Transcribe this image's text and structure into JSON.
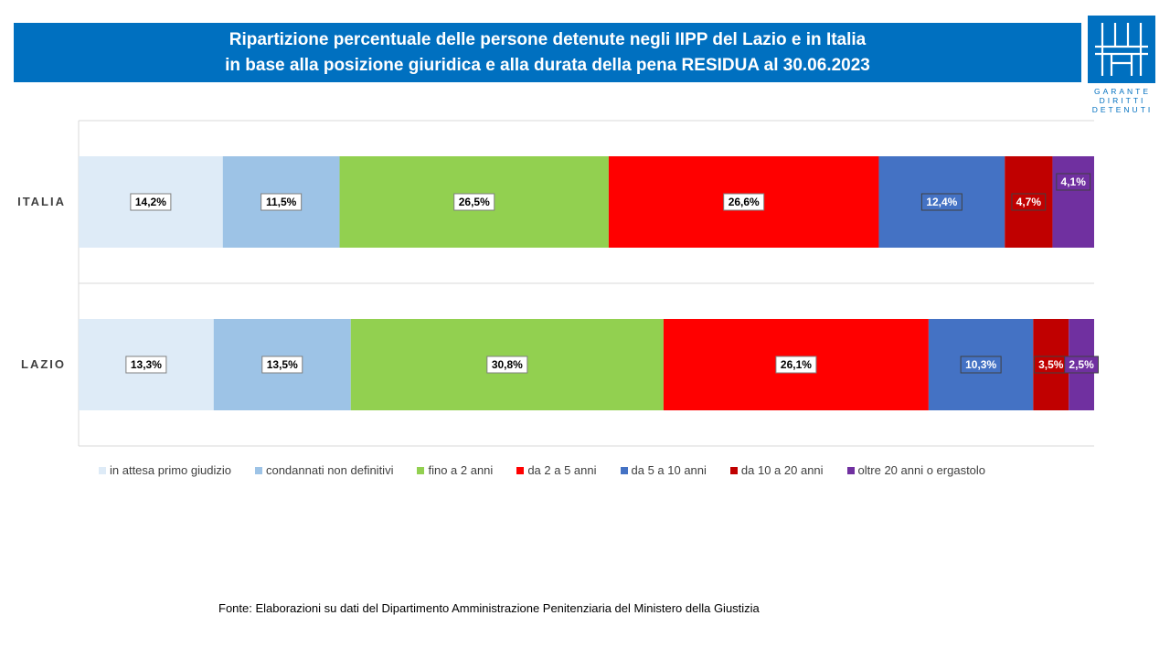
{
  "header": {
    "title_line1": "Ripartizione percentuale delle persone detenute negli IIPP del Lazio e in Italia",
    "title_line2": "in base alla posizione giuridica e alla durata della pena RESIDUA al 30.06.2023"
  },
  "logo": {
    "line1": "GARANTE",
    "line2": "DIRITTI",
    "line3": "DETENUTI"
  },
  "colors": {
    "banner": "#0070C0"
  },
  "chart_data": {
    "type": "bar",
    "orientation": "horizontal",
    "stacked": "100%",
    "title": "",
    "xlabel": "",
    "ylabel": "",
    "xlim": [
      0,
      100
    ],
    "grid": true,
    "legend_position": "bottom",
    "categories": [
      "ITALIA",
      "LAZIO"
    ],
    "series": [
      {
        "name": "in attesa primo giudizio",
        "color": "#DEEBF7",
        "label_style": "light",
        "values": [
          14.2,
          13.3
        ],
        "labels": [
          "14,2%",
          "13,3%"
        ]
      },
      {
        "name": "condannati non definitivi",
        "color": "#9DC3E6",
        "label_style": "light",
        "values": [
          11.5,
          13.5
        ],
        "labels": [
          "11,5%",
          "13,5%"
        ]
      },
      {
        "name": "fino a 2 anni",
        "color": "#92D050",
        "label_style": "light",
        "values": [
          26.5,
          30.8
        ],
        "labels": [
          "26,5%",
          "30,8%"
        ]
      },
      {
        "name": "da 2 a 5 anni",
        "color": "#FF0000",
        "label_style": "light",
        "values": [
          26.6,
          26.1
        ],
        "labels": [
          "26,6%",
          "26,1%"
        ]
      },
      {
        "name": "da 5 a 10 anni",
        "color": "#4472C4",
        "label_style": "dark",
        "values": [
          12.4,
          10.3
        ],
        "labels": [
          "12,4%",
          "10,3%"
        ]
      },
      {
        "name": "da 10 a 20 anni",
        "color": "#C00000",
        "label_style": "dark",
        "values": [
          4.7,
          3.5
        ],
        "labels": [
          "4,7%",
          "3,5%"
        ]
      },
      {
        "name": "oltre 20 anni o ergastolo",
        "color": "#7030A0",
        "label_style": "dark",
        "values": [
          4.1,
          2.5
        ],
        "labels": [
          "4,1%",
          "2,5%"
        ]
      }
    ]
  },
  "source": {
    "text": "Fonte:  Elaborazioni su dati del Dipartimento  Amministrazione  Penitenziaria del Ministero della Giustizia"
  }
}
